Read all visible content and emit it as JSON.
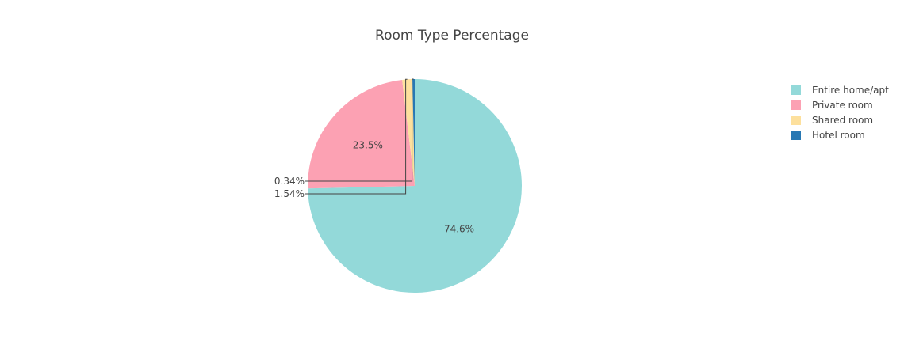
{
  "chart_data": {
    "type": "pie",
    "title": "Room Type Percentage",
    "categories": [
      "Entire home/apt",
      "Private room",
      "Shared room",
      "Hotel room"
    ],
    "values": [
      74.6,
      23.5,
      1.54,
      0.34
    ],
    "labels": [
      "74.6%",
      "23.5%",
      "1.54%",
      "0.34%"
    ],
    "colors": [
      "#93d9d9",
      "#fca1b3",
      "#fde09d",
      "#2878b3"
    ],
    "start_angle_deg": 90,
    "direction": "clockwise",
    "legend_position": "top-right"
  }
}
